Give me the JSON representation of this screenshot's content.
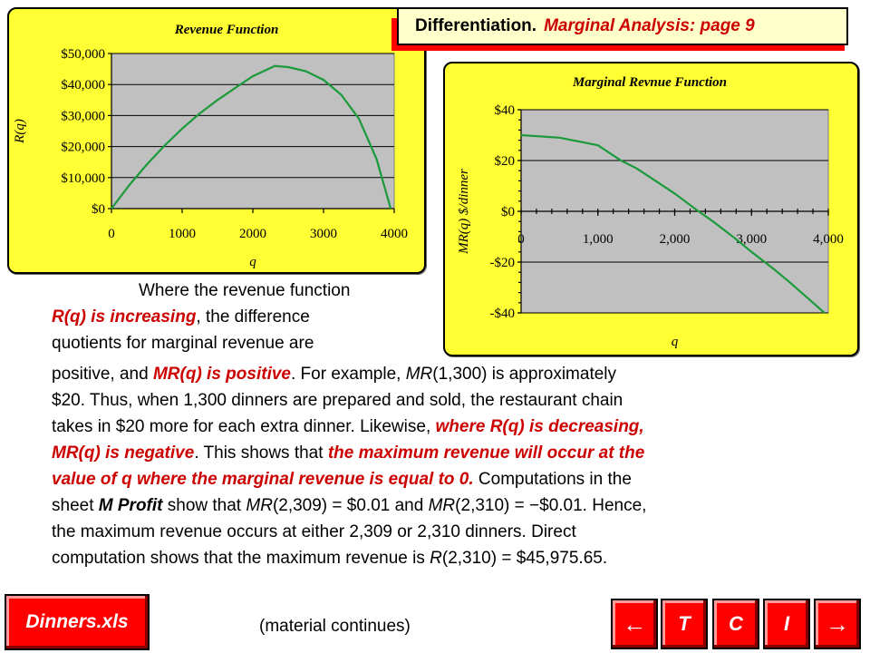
{
  "header": {
    "title": "Differentiation.",
    "subtitle": "Marginal Analysis:  page 9"
  },
  "chart_data": [
    {
      "type": "line",
      "title": "Revenue Function",
      "xlabel": "q",
      "ylabel": "R(q)",
      "xlim": [
        0,
        4000
      ],
      "ylim": [
        0,
        50000
      ],
      "xticks": [
        0,
        1000,
        2000,
        3000,
        4000
      ],
      "xtick_labels": [
        "0",
        "1000",
        "2000",
        "3000",
        "4000"
      ],
      "yticks": [
        0,
        10000,
        20000,
        30000,
        40000,
        50000
      ],
      "ytick_labels": [
        "$0",
        "$10,000",
        "$20,000",
        "$30,000",
        "$40,000",
        "$50,000"
      ],
      "grid": "horizontal",
      "series": [
        {
          "color": "#1a9a3a",
          "x": [
            0,
            250,
            500,
            750,
            1000,
            1250,
            1500,
            1750,
            2000,
            2310,
            2500,
            2750,
            3000,
            3250,
            3500,
            3750,
            3950
          ],
          "y": [
            0,
            7500,
            14200,
            20300,
            25800,
            30700,
            35000,
            38900,
            42700,
            45976,
            45600,
            44300,
            41500,
            36700,
            29000,
            16000,
            0
          ]
        }
      ]
    },
    {
      "type": "line",
      "title": "Marginal Revnue Function",
      "xlabel": "q",
      "ylabel": "MR(q) $/dinner",
      "xlim": [
        0,
        4000
      ],
      "ylim": [
        -40,
        40
      ],
      "xticks": [
        0,
        1000,
        2000,
        3000,
        4000
      ],
      "xtick_labels": [
        "0",
        "1,000",
        "2,000",
        "3,000",
        "4,000"
      ],
      "yticks": [
        -40,
        -20,
        0,
        20,
        40
      ],
      "ytick_labels": [
        "-$40",
        "-$20",
        "$0",
        "$20",
        "$40"
      ],
      "grid": "horizontal",
      "series": [
        {
          "color": "#1a9a3a",
          "x": [
            0,
            500,
            1000,
            1300,
            1500,
            1800,
            2000,
            2310,
            2500,
            2800,
            3000,
            3300,
            3500,
            3800,
            3950
          ],
          "y": [
            30,
            29,
            26,
            20,
            17,
            11,
            7,
            0,
            -4,
            -11,
            -16,
            -23,
            -28,
            -36,
            -40
          ]
        }
      ]
    }
  ],
  "text": {
    "para1_line1": "Where the revenue function",
    "para1_line2_em": "R(q) is increasing",
    "para1_line2_rest": ", the difference",
    "para1_line3": "quotients for marginal revenue are",
    "p2_a": "positive, and ",
    "p2_b_em": "MR(q) is positive",
    "p2_c": ".  For example, ",
    "p2_d_it": "MR",
    "p2_e": "(1,300) is approximately",
    "p3_a": "$20.  Thus, when 1,300 dinners are prepared and sold, the restaurant chain",
    "p4_a": "takes in $20 more for each extra dinner.  Likewise, ",
    "p4_b_em": "where R(q) is decreasing,",
    "p5_a_em": "MR(q) is negative",
    "p5_b": ".  This shows that ",
    "p5_c_em": "the maximum revenue will occur at the",
    "p6_a_em": "value of q where the marginal revenue is equal to 0.",
    "p6_b": "  Computations in the",
    "p7_a": "sheet ",
    "p7_b_bi": "M Profit",
    "p7_c": " show that ",
    "p7_d_it": "MR",
    "p7_e": "(2,309) = $0.01 and ",
    "p7_f_it": "MR",
    "p7_g": "(2,310) = −$0.01.  Hence,",
    "p8_a": "the maximum revenue occurs at either 2,309 or 2,310 dinners.  Direct",
    "p9_a": "computation shows that the maximum revenue is ",
    "p9_b_it": "R",
    "p9_c": "(2,310) = $45,975.65."
  },
  "footer": {
    "file_label": "Dinners.xls",
    "continues": "(material continues)",
    "nav": [
      {
        "label": "←",
        "icon": "arrow-left-icon"
      },
      {
        "label": "T",
        "icon": ""
      },
      {
        "label": "C",
        "icon": ""
      },
      {
        "label": "I",
        "icon": ""
      },
      {
        "label": "→",
        "icon": "arrow-right-icon"
      }
    ]
  }
}
